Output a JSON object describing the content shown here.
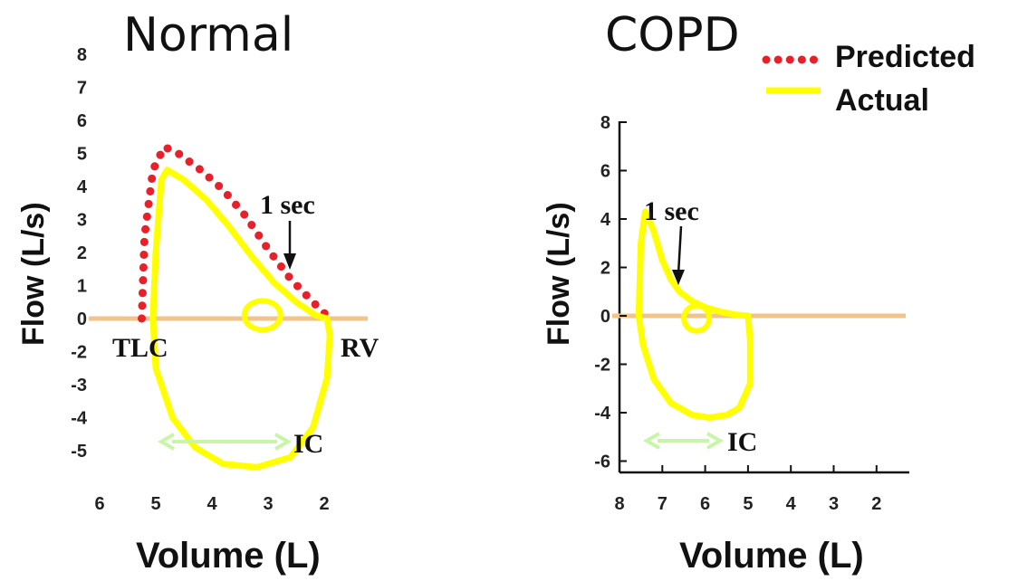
{
  "chart_data": [
    {
      "type": "line",
      "title": "Normal",
      "xlabel": "Volume (L)",
      "ylabel": "Flow (L/s)",
      "x_ticks": [
        "6",
        "5",
        "4",
        "3",
        "2"
      ],
      "y_ticks": [
        "8",
        "7",
        "6",
        "5",
        "4",
        "3",
        "2",
        "1",
        "0",
        "-2",
        "-3",
        "-4",
        "-5"
      ],
      "x_reversed": true,
      "point_labels": [
        "TLC",
        "RV"
      ],
      "annotations": [
        "1 sec",
        "IC"
      ],
      "series": [
        {
          "name": "Predicted",
          "style": "dotted",
          "color": "#e8202a",
          "x": [
            5.25,
            5.2,
            5.05,
            4.85,
            4.6,
            4.2,
            3.8,
            3.4,
            3.0,
            2.6,
            2.2,
            1.9
          ],
          "y": [
            0.0,
            2.5,
            4.5,
            5.2,
            5.0,
            4.5,
            3.9,
            3.1,
            2.1,
            1.2,
            0.5,
            0.0
          ]
        },
        {
          "name": "Actual",
          "style": "solid",
          "color": "#ffff00",
          "x": [
            5.05,
            5.0,
            4.9,
            4.8,
            4.5,
            4.1,
            3.7,
            3.3,
            2.9,
            2.5,
            2.15,
            1.95,
            1.9,
            1.95,
            2.2,
            2.6,
            3.2,
            3.8,
            4.3,
            4.7,
            5.0,
            5.05
          ],
          "y": [
            0.0,
            2.0,
            4.2,
            4.5,
            4.2,
            3.6,
            2.8,
            1.9,
            1.1,
            0.5,
            0.1,
            0.0,
            -0.5,
            -1.8,
            -3.3,
            -4.2,
            -4.5,
            -4.4,
            -3.9,
            -3.0,
            -1.5,
            0.0
          ]
        }
      ]
    },
    {
      "type": "line",
      "title": "COPD",
      "xlabel": "Volume (L)",
      "ylabel": "Flow (L/s)",
      "x_ticks": [
        "8",
        "7",
        "6",
        "5",
        "4",
        "3",
        "2"
      ],
      "y_ticks": [
        "8",
        "6",
        "4",
        "2",
        "0",
        "-2",
        "-4",
        "-6"
      ],
      "x_reversed": true,
      "annotations": [
        "1 sec",
        "IC"
      ],
      "series": [
        {
          "name": "Actual",
          "style": "solid",
          "color": "#ffff00",
          "x": [
            7.55,
            7.5,
            7.4,
            7.2,
            7.0,
            6.8,
            6.6,
            6.3,
            6.0,
            5.6,
            5.3,
            5.0,
            4.95,
            4.95,
            5.2,
            5.5,
            5.9,
            6.3,
            6.8,
            7.2,
            7.45,
            7.55
          ],
          "y": [
            0.0,
            3.0,
            4.3,
            3.5,
            2.3,
            1.5,
            1.0,
            0.6,
            0.35,
            0.15,
            0.05,
            0.0,
            -1.0,
            -2.8,
            -3.8,
            -4.1,
            -4.2,
            -4.1,
            -3.6,
            -2.6,
            -1.2,
            0.0
          ]
        }
      ]
    }
  ],
  "legend": {
    "items": [
      {
        "label": "Predicted",
        "color": "#e8202a",
        "style": "dotted"
      },
      {
        "label": "Actual",
        "color": "#ffff00",
        "style": "solid"
      }
    ]
  }
}
